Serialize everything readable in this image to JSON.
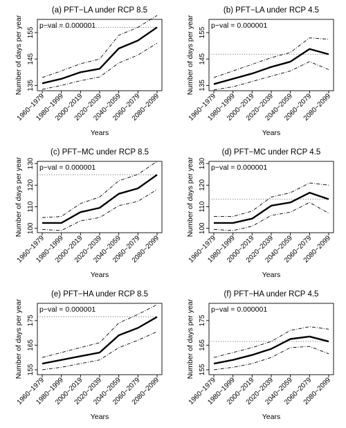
{
  "figure": {
    "background": "#ffffff",
    "line_color": "#000000",
    "reference_line_color": "#777777"
  },
  "chart_data": [
    {
      "type": "line",
      "title": "(a) PFT−LA under RCP 8.5",
      "xlabel": "Years",
      "ylabel": "Number of days per year",
      "annotation": "p−val = 0.000001",
      "categories": [
        "1960−1979",
        "1980−1999",
        "2000−2019",
        "2020−2039",
        "2040−2059",
        "2060−2079",
        "2080−2099"
      ],
      "yticks": [
        135,
        145,
        155
      ],
      "ylim": [
        133,
        160
      ],
      "reference_line": 157,
      "series": [
        {
          "style": "solid",
          "values": [
            135.8,
            137.5,
            140.0,
            141.3,
            149.0,
            152.0,
            157.0
          ]
        },
        {
          "style": "dashdot",
          "values": [
            138.0,
            140.5,
            143.2,
            145.0,
            154.0,
            157.0,
            161.5
          ]
        },
        {
          "style": "dashdot",
          "values": [
            133.5,
            135.0,
            136.8,
            138.2,
            143.5,
            146.5,
            151.0
          ]
        }
      ]
    },
    {
      "type": "line",
      "title": "(b) PFT−LA under RCP 4.5",
      "xlabel": "Years",
      "ylabel": "Number of days per year",
      "annotation": "p−val = 0.000001",
      "categories": [
        "1960−1979",
        "1980−1999",
        "2000−2019",
        "2020−2039",
        "2040−2059",
        "2060−2079",
        "2080−2099"
      ],
      "yticks": [
        135,
        145,
        155
      ],
      "ylim": [
        133,
        160
      ],
      "reference_line": 146.8,
      "series": [
        {
          "style": "solid",
          "values": [
            135.5,
            137.5,
            139.5,
            142.0,
            144.0,
            148.8,
            146.8
          ]
        },
        {
          "style": "dashdot",
          "values": [
            138.0,
            140.5,
            143.0,
            145.5,
            147.5,
            153.0,
            152.5
          ]
        },
        {
          "style": "dashdot",
          "values": [
            133.3,
            134.5,
            136.5,
            138.5,
            140.5,
            144.0,
            141.0
          ]
        }
      ]
    },
    {
      "type": "line",
      "title": "(c) PFT−MC under RCP 8.5",
      "xlabel": "Years",
      "ylabel": "Number of days per year",
      "annotation": "p−val = 0.000001",
      "categories": [
        "1960−1979",
        "1980−1999",
        "2000−2019",
        "2020−2039",
        "2040−2059",
        "2060−2079",
        "2080−2099"
      ],
      "yticks": [
        100,
        110,
        120,
        130
      ],
      "ylim": [
        98,
        131
      ],
      "reference_line": 124.8,
      "series": [
        {
          "style": "solid",
          "values": [
            102.5,
            102.5,
            107.5,
            109.5,
            116.0,
            118.5,
            124.8
          ]
        },
        {
          "style": "dashdot",
          "values": [
            105.0,
            105.5,
            111.5,
            114.5,
            122.0,
            125.0,
            131.0
          ]
        },
        {
          "style": "dashdot",
          "values": [
            99.5,
            99.0,
            103.5,
            105.0,
            110.5,
            112.5,
            118.0
          ]
        }
      ]
    },
    {
      "type": "line",
      "title": "(d) PFT−MC under RCP 4.5",
      "xlabel": "Years",
      "ylabel": "Number of days per year",
      "annotation": "p−val = 0.000001",
      "categories": [
        "1960−1979",
        "1980−1999",
        "2000−2019",
        "2020−2039",
        "2040−2059",
        "2060−2079",
        "2080−2099"
      ],
      "yticks": [
        100,
        110,
        120,
        130
      ],
      "ylim": [
        98,
        131
      ],
      "reference_line": 113.5,
      "series": [
        {
          "style": "solid",
          "values": [
            102.5,
            102.5,
            104.5,
            110.5,
            112.0,
            116.5,
            113.5
          ]
        },
        {
          "style": "dashdot",
          "values": [
            105.5,
            105.5,
            108.0,
            114.5,
            116.5,
            121.0,
            120.0
          ]
        },
        {
          "style": "dashdot",
          "values": [
            99.5,
            99.0,
            101.0,
            106.0,
            107.5,
            112.0,
            107.0
          ]
        }
      ]
    },
    {
      "type": "line",
      "title": "(e) PFT−HA under RCP 8.5",
      "xlabel": "Years",
      "ylabel": "Number of days per year",
      "annotation": "p−val = 0.000001",
      "categories": [
        "1960−1979",
        "1980−1999",
        "2000−2019",
        "2020−2039",
        "2040−2059",
        "2060−2079",
        "2080−2099"
      ],
      "yticks": [
        155,
        165,
        175
      ],
      "ylim": [
        153,
        182
      ],
      "reference_line": 176.5,
      "series": [
        {
          "style": "solid",
          "values": [
            157.5,
            159.0,
            160.5,
            162.0,
            169.0,
            172.0,
            176.5
          ]
        },
        {
          "style": "dashdot",
          "values": [
            160.0,
            162.0,
            164.0,
            166.0,
            174.0,
            177.5,
            181.5
          ]
        },
        {
          "style": "dashdot",
          "values": [
            155.0,
            156.0,
            157.5,
            159.0,
            164.0,
            167.0,
            170.5
          ]
        }
      ]
    },
    {
      "type": "line",
      "title": "(f) PFT−HA under RCP 4.5",
      "xlabel": "Years",
      "ylabel": "Number of days per year",
      "annotation": "p−val = 0.000001",
      "categories": [
        "1960−1979",
        "1980−1999",
        "2000−2019",
        "2020−2039",
        "2040−2059",
        "2060−2079",
        "2080−2099"
      ],
      "yticks": [
        155,
        165,
        175
      ],
      "ylim": [
        153,
        182
      ],
      "reference_line": 166.5,
      "series": [
        {
          "style": "solid",
          "values": [
            157.5,
            159.0,
            161.0,
            163.5,
            167.5,
            168.5,
            166.5
          ]
        },
        {
          "style": "dashdot",
          "values": [
            160.0,
            162.0,
            164.0,
            166.5,
            171.0,
            172.5,
            171.5
          ]
        },
        {
          "style": "dashdot",
          "values": [
            155.0,
            156.0,
            157.5,
            160.0,
            164.0,
            164.5,
            161.5
          ]
        }
      ]
    }
  ]
}
